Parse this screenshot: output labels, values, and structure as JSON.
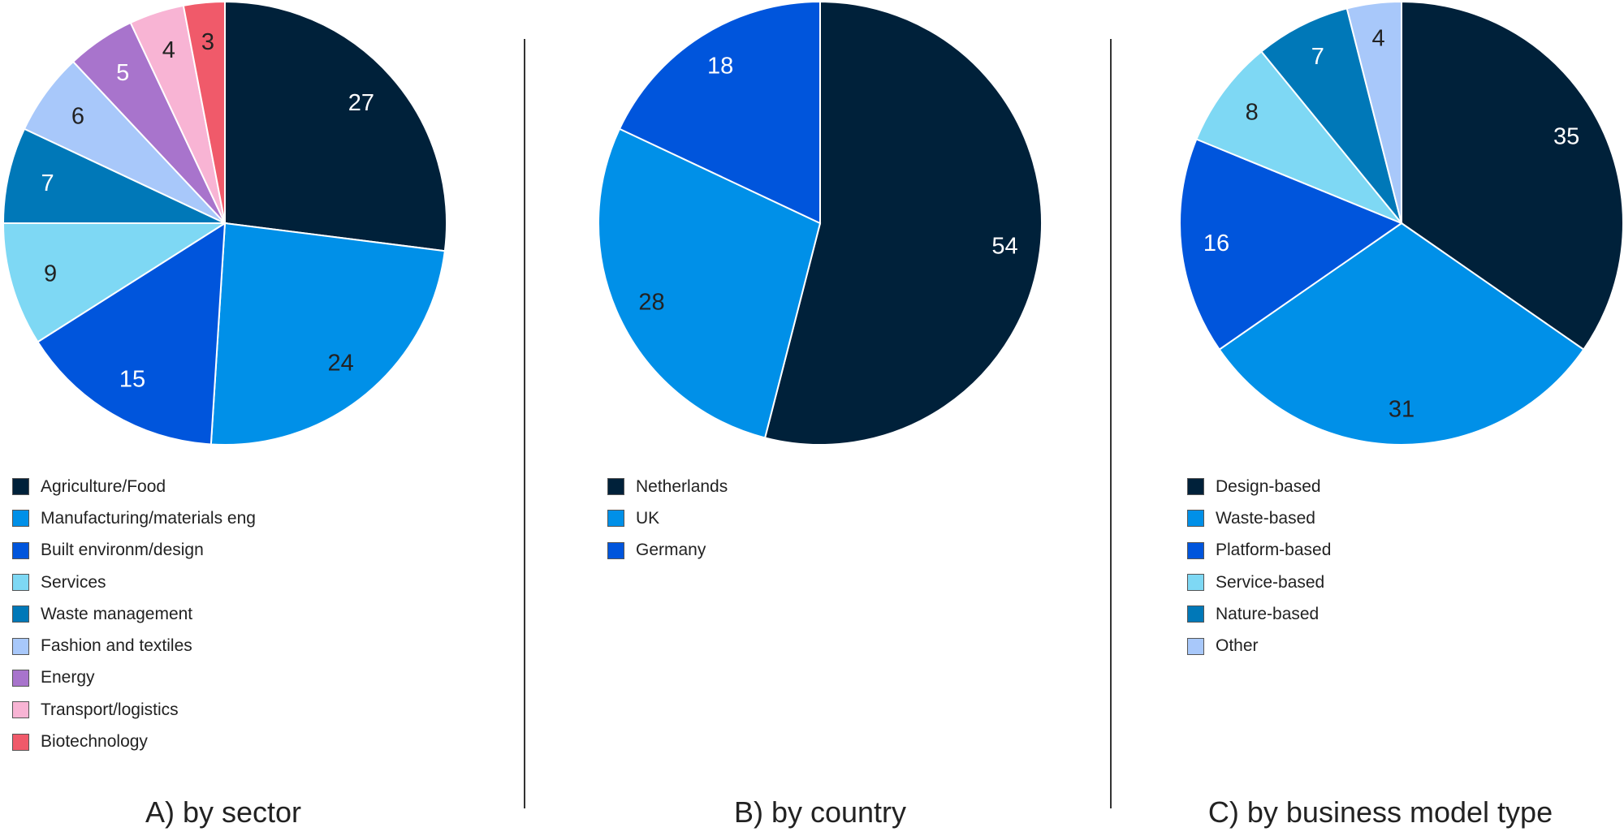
{
  "chart_data": [
    {
      "type": "pie",
      "caption": "A) by sector",
      "categories": [
        "Agriculture/Food",
        "Manufacturing/materials eng",
        "Built environm/design",
        "Services",
        "Waste management",
        "Fashion and textiles",
        "Energy",
        "Transport/logistics",
        "Biotechnology"
      ],
      "values": [
        27,
        24,
        15,
        9,
        7,
        6,
        5,
        4,
        3
      ],
      "colors": [
        "#00213a",
        "#0090e8",
        "#0055dc",
        "#7ed8f4",
        "#0078b8",
        "#a8c8fa",
        "#a874cc",
        "#f8b4d4",
        "#f05a6a"
      ],
      "label_colors": [
        "#ffffff",
        "#222222",
        "#ffffff",
        "#222222",
        "#ffffff",
        "#222222",
        "#ffffff",
        "#222222",
        "#222222"
      ],
      "legend_position": "bottom"
    },
    {
      "type": "pie",
      "caption": "B) by country",
      "categories": [
        "Netherlands",
        "UK",
        "Germany"
      ],
      "values": [
        54,
        28,
        18
      ],
      "colors": [
        "#00213a",
        "#0090e8",
        "#0055dc"
      ],
      "label_colors": [
        "#ffffff",
        "#222222",
        "#ffffff"
      ],
      "legend_position": "bottom"
    },
    {
      "type": "pie",
      "caption": "C) by business model type",
      "categories": [
        "Design-based",
        "Waste-based",
        "Platform-based",
        "Service-based",
        "Nature-based",
        "Other"
      ],
      "values": [
        35,
        31,
        16,
        8,
        7,
        4
      ],
      "colors": [
        "#00213a",
        "#0090e8",
        "#0055dc",
        "#7ed8f4",
        "#0078b8",
        "#a8c8fa"
      ],
      "label_colors": [
        "#ffffff",
        "#222222",
        "#ffffff",
        "#222222",
        "#ffffff",
        "#222222"
      ],
      "legend_position": "bottom"
    }
  ]
}
